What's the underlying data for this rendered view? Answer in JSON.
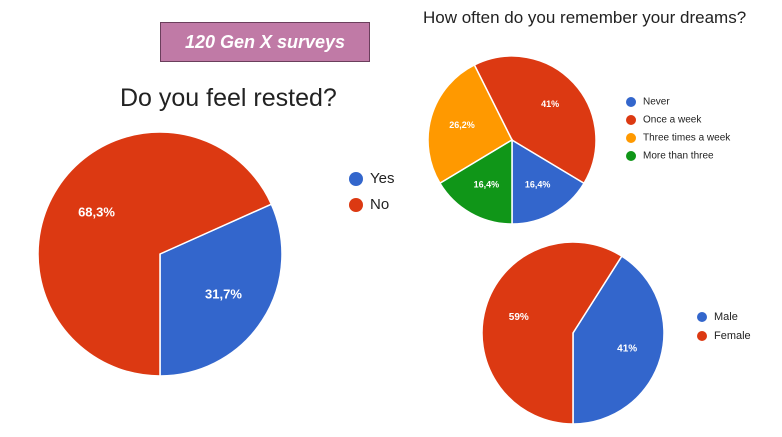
{
  "header": {
    "badge": "120 Gen X surveys"
  },
  "colors": {
    "blue": "#3366cc",
    "red": "#dc3912",
    "orange": "#ff9900",
    "green": "#109618"
  },
  "chart_data": [
    {
      "type": "pie",
      "title": "Do you feel rested?",
      "labels": [
        "Yes",
        "No"
      ],
      "values": [
        31.7,
        68.3
      ],
      "slice_labels": [
        "31,7%",
        "68,3%"
      ],
      "colors": [
        "#3366cc",
        "#dc3912"
      ],
      "legend": "right"
    },
    {
      "type": "pie",
      "title": "How often do you remember your dreams?",
      "labels": [
        "Never",
        "Once a week",
        "Three times a week",
        "More than three"
      ],
      "values": [
        16.4,
        41,
        26.2,
        16.4
      ],
      "slice_labels": [
        "16,4%",
        "41%",
        "26,2%",
        "16,4%"
      ],
      "colors": [
        "#3366cc",
        "#dc3912",
        "#ff9900",
        "#109618"
      ],
      "legend": "right"
    },
    {
      "type": "pie",
      "title": "",
      "labels": [
        "Male",
        "Female"
      ],
      "values": [
        41,
        59
      ],
      "slice_labels": [
        "41%",
        "59%"
      ],
      "colors": [
        "#3366cc",
        "#dc3912"
      ],
      "legend": "right"
    }
  ]
}
